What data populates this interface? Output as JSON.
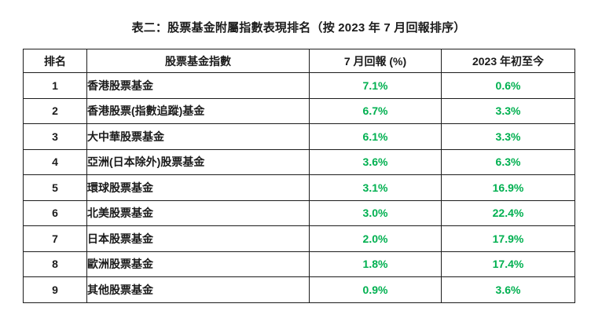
{
  "title": "表二：股票基金附屬指數表現排名（按 2023 年 7 月回報排序）",
  "colors": {
    "positive_value_green": "#00b050",
    "text_black": "#1b1b1b",
    "border_black": "#1c1c1c"
  },
  "table": {
    "headers": {
      "rank": "排名",
      "fund_index": "股票基金指數",
      "july_return": "7 月回報 (%)",
      "ytd": "2023 年初至今"
    },
    "rows": [
      {
        "rank": "1",
        "fund_index": "香港股票基金",
        "july_return": "7.1%",
        "ytd": "0.6%"
      },
      {
        "rank": "2",
        "fund_index": "香港股票(指數追蹤)基金",
        "july_return": "6.7%",
        "ytd": "3.3%"
      },
      {
        "rank": "3",
        "fund_index": "大中華股票基金",
        "july_return": "6.1%",
        "ytd": "3.3%"
      },
      {
        "rank": "4",
        "fund_index": "亞洲(日本除外)股票基金",
        "july_return": "3.6%",
        "ytd": "6.3%"
      },
      {
        "rank": "5",
        "fund_index": "環球股票基金",
        "july_return": "3.1%",
        "ytd": "16.9%"
      },
      {
        "rank": "6",
        "fund_index": "北美股票基金",
        "july_return": "3.0%",
        "ytd": "22.4%"
      },
      {
        "rank": "7",
        "fund_index": "日本股票基金",
        "july_return": "2.0%",
        "ytd": "17.9%"
      },
      {
        "rank": "8",
        "fund_index": "歐洲股票基金",
        "july_return": "1.8%",
        "ytd": "17.4%"
      },
      {
        "rank": "9",
        "fund_index": "其他股票基金",
        "july_return": "0.9%",
        "ytd": "3.6%"
      }
    ]
  }
}
